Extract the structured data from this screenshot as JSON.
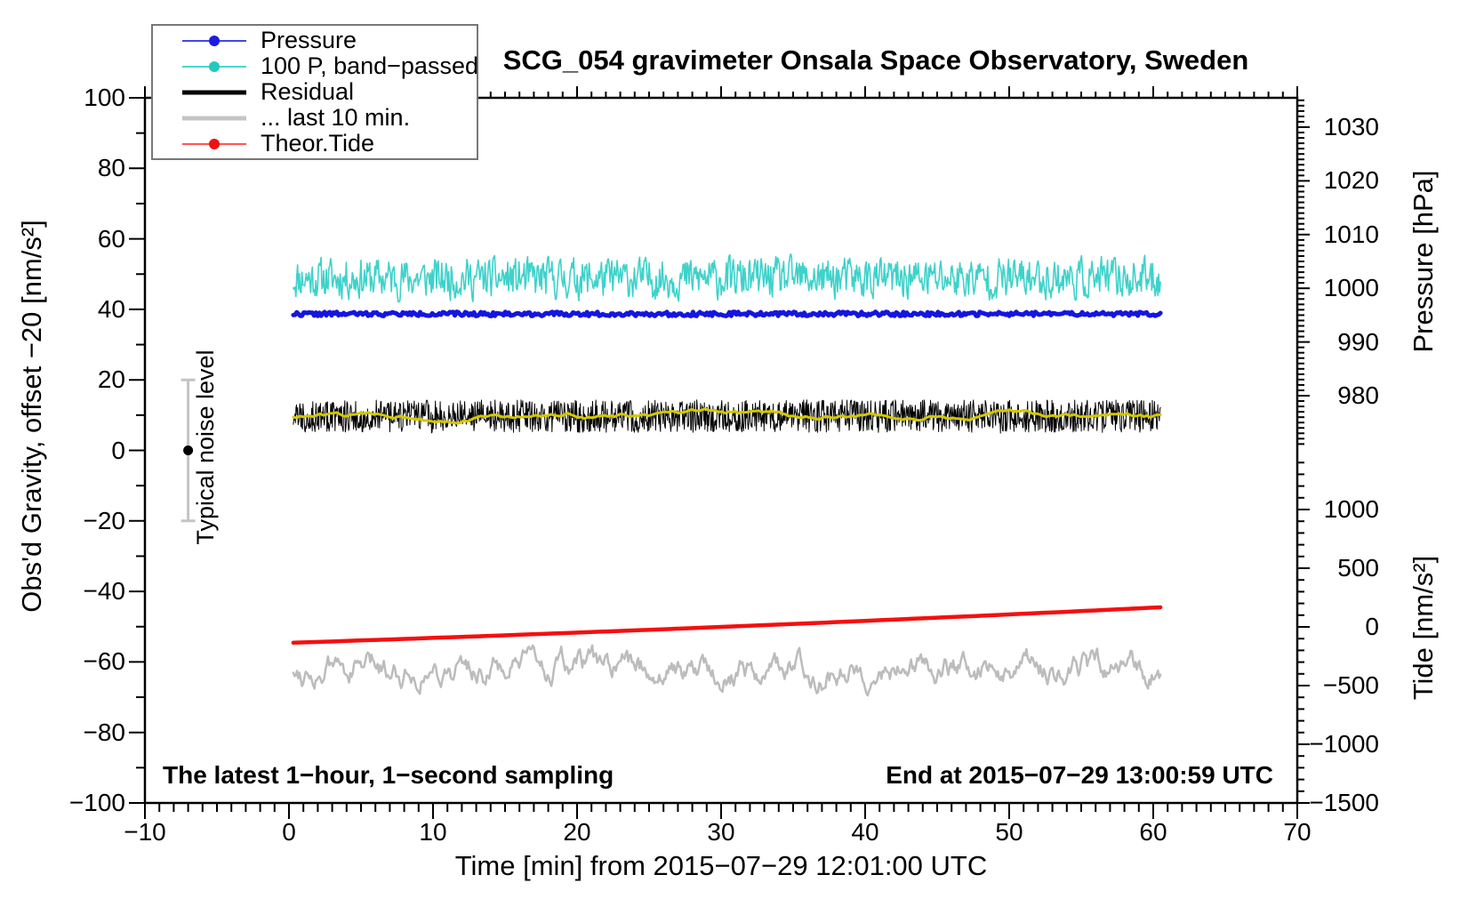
{
  "title": "SCG_054 gravimeter Onsala Space Observatory, Sweden",
  "legend": {
    "items": [
      {
        "label": "Pressure",
        "line_color": "#4646e8",
        "dot_color": "#1c1ce0",
        "line_width": 2,
        "dot": true
      },
      {
        "label": "100 P, band−passed",
        "line_color": "#49d6cf",
        "dot_color": "#25c8bf",
        "line_width": 2,
        "dot": true
      },
      {
        "label": "Residual",
        "line_color": "#000000",
        "dot_color": "#000000",
        "line_width": 5,
        "dot": false
      },
      {
        "label": "... last 10 min.",
        "line_color": "#c4c4c4",
        "dot_color": "#c4c4c4",
        "line_width": 5,
        "dot": false
      },
      {
        "label": "Theor.Tide",
        "line_color": "#ff5555",
        "dot_color": "#ee1111",
        "line_width": 2,
        "dot": true
      }
    ]
  },
  "annotations": {
    "bottom_left": "The latest 1−hour, 1−second sampling",
    "bottom_right": "End at 2015−07−29 13:00:59 UTC"
  },
  "chart_data": {
    "type": "line",
    "title": "SCG_054 gravimeter Onsala Space Observatory, Sweden",
    "x_axis": {
      "label": "Time [min] from 2015−07−29 12:01:00 UTC",
      "min": -10,
      "max": 70,
      "major_step": 10,
      "minor_step": 1,
      "ticks": [
        -10,
        0,
        10,
        20,
        30,
        40,
        50,
        60,
        70
      ],
      "tick_labels": [
        "−10",
        "0",
        "10",
        "20",
        "30",
        "40",
        "50",
        "60",
        "70"
      ]
    },
    "gravity_axis": {
      "label": "Obs'd Gravity, offset −20 [nm/s²]",
      "min": -100,
      "max": 100,
      "major_step": 20,
      "minor_step": 10,
      "ticks": [
        100,
        80,
        60,
        40,
        20,
        0,
        -20,
        -40,
        -60,
        -80,
        -100
      ],
      "tick_labels": [
        "100",
        "80",
        "60",
        "40",
        "20",
        "0",
        "−20",
        "−40",
        "−60",
        "−80",
        "−100"
      ]
    },
    "pressure_axis": {
      "label": "Pressure [hPa]",
      "visible_min": 971,
      "visible_max": 1035,
      "major_step": 10,
      "minor_step": 1,
      "ticks": [
        1030,
        1020,
        1010,
        1000,
        990,
        980
      ],
      "tick_labels": [
        "1030",
        "1020",
        "1010",
        "1000",
        "990",
        "980"
      ]
    },
    "tide_axis": {
      "label": "Tide [nm/s²]",
      "visible_min": -1500,
      "visible_max": 1430,
      "major_step": 500,
      "minor_step": 100,
      "ticks": [
        1000,
        500,
        0,
        -500,
        -1000,
        -1500
      ],
      "tick_labels": [
        "1000",
        "500",
        "0",
        "−500",
        "−1000",
        "−1500"
      ]
    },
    "series": [
      {
        "name": "100 P, band−passed",
        "axis": "gravity",
        "color": "#3ed2ca",
        "width": 1.6,
        "t_start": 0.3,
        "t_end": 60.5,
        "mean": 48.8,
        "peak_amplitude": 5.5,
        "synth": {
          "n": 1000,
          "ar": 0.3,
          "amp": 5.2,
          "seed": 11
        }
      },
      {
        "name": "Pressure",
        "axis": "gravity",
        "color": "#1515e0",
        "width": 5,
        "t_start": 0.3,
        "t_end": 60.5,
        "mean": 38.7,
        "mean_hpa": 995,
        "peak_amplitude": 0.4,
        "synth": {
          "n": 500,
          "ar": 0.0,
          "amp": 0.6,
          "seed": 22
        }
      },
      {
        "name": "Residual",
        "axis": "gravity",
        "color": "#000000",
        "width": 1,
        "t_start": 0.3,
        "t_end": 60.5,
        "mean": 9.7,
        "peak_amplitude": 3.5,
        "synth": {
          "n": 1600,
          "ar": 0.0,
          "amp": 4.6,
          "seed": 33,
          "spike_prob": 0.006,
          "spike_amp": 16
        }
      },
      {
        "name": "Residual smoothed",
        "axis": "gravity",
        "color": "#d3c700",
        "width": 3,
        "t_start": 0.3,
        "t_end": 60.5,
        "mean": 9.7,
        "peak_amplitude": 1.3,
        "synth": {
          "n": 260,
          "ar": 0.93,
          "amp": 0.5,
          "seed": 44
        }
      },
      {
        "name": "... last 10 min.",
        "axis": "gravity",
        "color": "#bcbcbc",
        "width": 2.5,
        "t_start": 0.3,
        "t_end": 60.5,
        "mean": -61.9,
        "peak_amplitude": 4,
        "synth": {
          "n": 700,
          "ar": 0.85,
          "amp": 2.4,
          "seed": 55
        }
      },
      {
        "name": "Theor.Tide",
        "axis": "tide",
        "color": "#f50f0f",
        "width": 4.5,
        "points": [
          [
            0.3,
            -135
          ],
          [
            30,
            0
          ],
          [
            60.5,
            167
          ]
        ],
        "tide_start": -135,
        "tide_end": 167
      }
    ],
    "noise_bar": {
      "label": "Typical noise level",
      "t": -7,
      "center": 0,
      "half_range": 20,
      "bar_color": "#c4c4c4",
      "dot_color": "#000000"
    },
    "grid": false,
    "legend_position": "top-left"
  }
}
